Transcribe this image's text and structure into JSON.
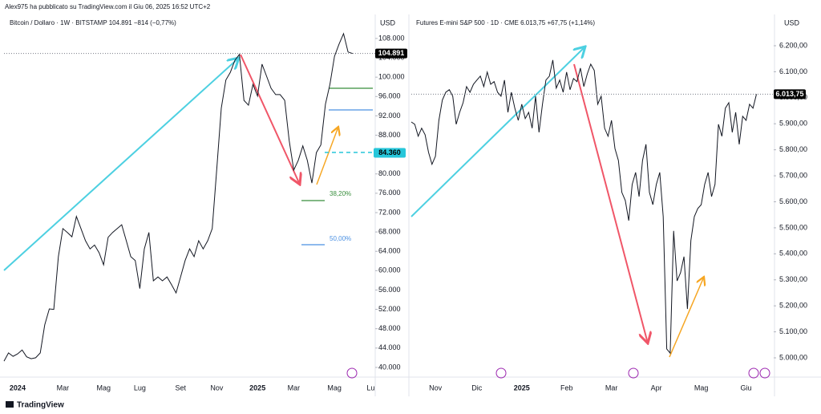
{
  "header": "Alex975 ha pubblicato su TradingView.com il Giu 06, 2025 16:52 UTC+2",
  "footer": "TradingView",
  "chart_data": [
    {
      "type": "line",
      "title": "Bitcoin / Dollaro · 1W · BITSTAMP  104.891  −814 (−0,77%)",
      "axis_unit": "USD",
      "color": "#131722",
      "categories": [
        null,
        null,
        null,
        "2024",
        null,
        null,
        null,
        null,
        null,
        null,
        null,
        null,
        null,
        "Mar",
        null,
        null,
        null,
        null,
        null,
        null,
        null,
        null,
        "Mag",
        null,
        null,
        null,
        null,
        null,
        null,
        null,
        "Lug",
        null,
        null,
        null,
        null,
        null,
        null,
        null,
        null,
        "Set",
        null,
        null,
        null,
        null,
        null,
        null,
        null,
        "Nov",
        null,
        null,
        null,
        null,
        null,
        null,
        null,
        null,
        "2025",
        null,
        null,
        null,
        null,
        null,
        null,
        null,
        "Mar",
        null,
        null,
        null,
        null,
        null,
        null,
        null,
        null,
        "Mag",
        null,
        null,
        null,
        null,
        null,
        null,
        null,
        "Lu",
        null
      ],
      "values": [
        41300,
        43000,
        42300,
        42800,
        43600,
        42200,
        41800,
        42000,
        43000,
        48800,
        52100,
        52000,
        62900,
        68700,
        67900,
        67000,
        71200,
        68700,
        66200,
        64500,
        65300,
        63700,
        61200,
        66900,
        67900,
        68700,
        69500,
        66200,
        62900,
        62100,
        56300,
        64500,
        67900,
        57900,
        58700,
        57900,
        58700,
        57100,
        55400,
        58700,
        62100,
        64500,
        62900,
        66200,
        64500,
        66200,
        68700,
        81100,
        93600,
        99400,
        101000,
        103500,
        104700,
        95200,
        94200,
        98500,
        96100,
        102700,
        100200,
        97700,
        96400,
        96400,
        95200,
        86900,
        80800,
        82800,
        85800,
        82800,
        78100,
        84400,
        86000,
        94400,
        98500,
        104300,
        106800,
        109000,
        105200,
        104891,
        null,
        null,
        null,
        null,
        null
      ],
      "ylim": [
        38000,
        112300
      ],
      "yticks": [
        {
          "value": 40000,
          "label": "40.000"
        },
        {
          "value": 44000,
          "label": "44.000"
        },
        {
          "value": 48000,
          "label": "48.000"
        },
        {
          "value": 52000,
          "label": "52.000"
        },
        {
          "value": 56000,
          "label": "56.000"
        },
        {
          "value": 60000,
          "label": "60.000"
        },
        {
          "value": 64000,
          "label": "64.000"
        },
        {
          "value": 68000,
          "label": "68.000"
        },
        {
          "value": 72000,
          "label": "72.000"
        },
        {
          "value": 76000,
          "label": "76.000"
        },
        {
          "value": 80000,
          "label": "80.000"
        },
        {
          "value": 84000,
          "label": "84.000"
        },
        {
          "value": 88000,
          "label": "88.000"
        },
        {
          "value": 92000,
          "label": "92.000"
        },
        {
          "value": 96000,
          "label": "96.000"
        },
        {
          "value": 100000,
          "label": "100.000"
        },
        {
          "value": 104000,
          "label": "104.000"
        },
        {
          "value": 108000,
          "label": "108.000"
        }
      ],
      "price_labels": [
        {
          "value": 104891,
          "label": "104.891",
          "color": "#000000"
        },
        {
          "value": 84360,
          "label": "84.360",
          "color": "#26c6da"
        }
      ],
      "fib_labels": [
        "38,20%",
        "50,00%"
      ]
    },
    {
      "type": "line",
      "title": "Futures E-mini S&P 500 · 1D · CME  6.013,75  +67,75 (+1,14%)",
      "axis_unit": "USD",
      "color": "#131722",
      "categories": [
        null,
        null,
        null,
        null,
        null,
        null,
        null,
        "Nov",
        null,
        null,
        null,
        null,
        null,
        null,
        null,
        null,
        null,
        null,
        null,
        "Dic",
        null,
        null,
        null,
        null,
        null,
        null,
        null,
        null,
        null,
        null,
        null,
        null,
        "2025",
        null,
        null,
        null,
        null,
        null,
        null,
        null,
        null,
        null,
        null,
        null,
        null,
        "Feb",
        null,
        null,
        null,
        null,
        null,
        null,
        null,
        null,
        null,
        null,
        null,
        null,
        "Mar",
        null,
        null,
        null,
        null,
        null,
        null,
        null,
        null,
        null,
        null,
        null,
        null,
        "Apr",
        null,
        null,
        null,
        null,
        null,
        null,
        null,
        null,
        null,
        null,
        null,
        null,
        "Mag",
        null,
        null,
        null,
        null,
        null,
        null,
        null,
        null,
        null,
        null,
        null,
        null,
        "Giu",
        null,
        null,
        null,
        null,
        null,
        null,
        null,
        null
      ],
      "values": [
        5907,
        5898,
        5852,
        5883,
        5858,
        5790,
        5744,
        5775,
        5913,
        5991,
        6021,
        6031,
        6006,
        5898,
        5944,
        5981,
        6043,
        6021,
        6052,
        6068,
        6083,
        6043,
        6099,
        6052,
        6062,
        6021,
        6006,
        6068,
        5944,
        6021,
        5960,
        5913,
        5975,
        5920,
        5944,
        5883,
        6006,
        5867,
        5975,
        6068,
        6083,
        6145,
        6037,
        6068,
        6021,
        6099,
        6031,
        6074,
        6062,
        6114,
        6043,
        6092,
        6129,
        6105,
        5975,
        6006,
        5883,
        5852,
        5913,
        5805,
        5759,
        5636,
        5605,
        5528,
        5667,
        5713,
        5620,
        5759,
        5821,
        5636,
        5589,
        5667,
        5713,
        5543,
        5034,
        5018,
        5488,
        5296,
        5327,
        5389,
        5188,
        5451,
        5543,
        5574,
        5589,
        5667,
        5713,
        5620,
        5667,
        5898,
        5852,
        5960,
        5981,
        5867,
        5944,
        5821,
        5929,
        5913,
        5975,
        5960,
        6013.75,
        null,
        null,
        null,
        null,
        null
      ],
      "ylim": [
        4926,
        6308
      ],
      "yticks": [
        {
          "value": 5000,
          "label": "5.000,00"
        },
        {
          "value": 5100,
          "label": "5.100,00"
        },
        {
          "value": 5200,
          "label": "5.200,00"
        },
        {
          "value": 5300,
          "label": "5.300,00"
        },
        {
          "value": 5400,
          "label": "5.400,00"
        },
        {
          "value": 5500,
          "label": "5.500,00"
        },
        {
          "value": 5600,
          "label": "5.600,00"
        },
        {
          "value": 5700,
          "label": "5.700,00"
        },
        {
          "value": 5800,
          "label": "5.800,00"
        },
        {
          "value": 5900,
          "label": "5.900,00"
        },
        {
          "value": 6000,
          "label": "6.000,00"
        },
        {
          "value": 6100,
          "label": "6.100,00"
        },
        {
          "value": 6200,
          "label": "6.200,00"
        }
      ],
      "price_labels": [
        {
          "value": 6013.75,
          "label": "6.013,75",
          "color": "#000000"
        }
      ]
    }
  ]
}
